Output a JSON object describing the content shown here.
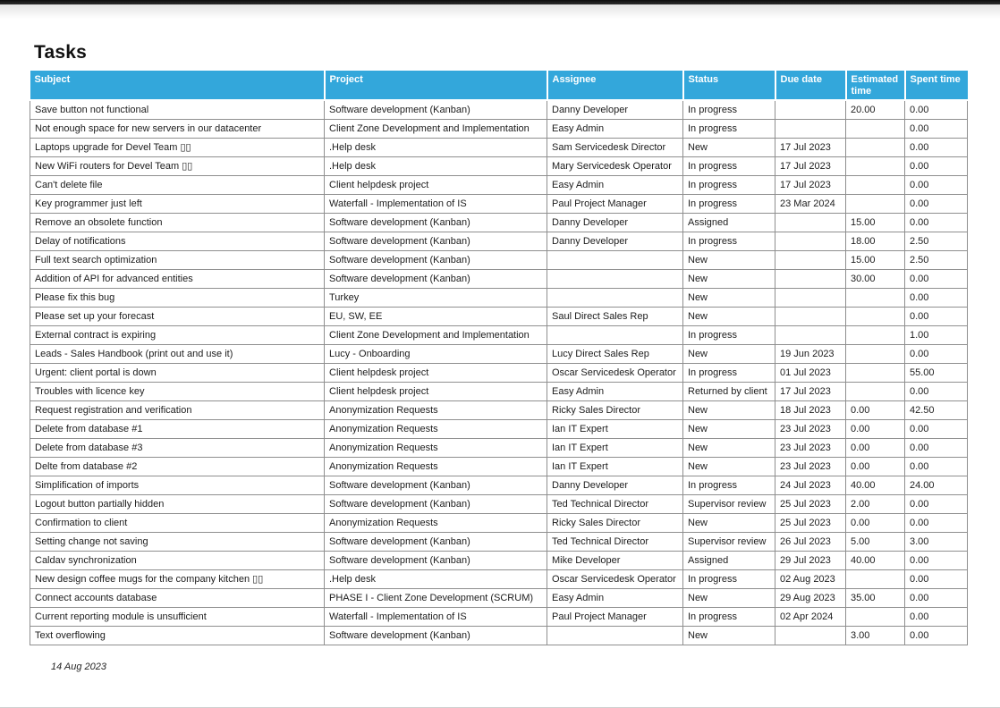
{
  "page": {
    "title": "Tasks",
    "footer_date": "14 Aug 2023"
  },
  "table": {
    "header_bg": "#33A7DB",
    "columns": [
      "Subject",
      "Project",
      "Assignee",
      "Status",
      "Due date",
      "Estimated time",
      "Spent time"
    ],
    "rows": [
      [
        "Save button not functional",
        "Software development (Kanban)",
        "Danny Developer",
        "In progress",
        "",
        "20.00",
        "0.00"
      ],
      [
        "Not enough space for new servers in our datacenter",
        "Client Zone Development and Implementation",
        "Easy Admin",
        "In progress",
        "",
        "",
        "0.00"
      ],
      [
        "Laptops upgrade for Devel Team ▯▯",
        ".Help desk",
        "Sam Servicedesk Director",
        "New",
        "17 Jul 2023",
        "",
        "0.00"
      ],
      [
        "New WiFi routers for Devel Team ▯▯",
        ".Help desk",
        "Mary Servicedesk Operator",
        "In progress",
        "17 Jul 2023",
        "",
        "0.00"
      ],
      [
        "Can't delete file",
        "Client helpdesk project",
        "Easy Admin",
        "In progress",
        "17 Jul 2023",
        "",
        "0.00"
      ],
      [
        "Key programmer just left",
        "Waterfall - Implementation of IS",
        "Paul Project Manager",
        "In progress",
        "23 Mar 2024",
        "",
        "0.00"
      ],
      [
        "Remove an obsolete function",
        "Software development (Kanban)",
        "Danny Developer",
        "Assigned",
        "",
        "15.00",
        "0.00"
      ],
      [
        "Delay of notifications",
        "Software development (Kanban)",
        "Danny Developer",
        "In progress",
        "",
        "18.00",
        "2.50"
      ],
      [
        "Full text search optimization",
        "Software development (Kanban)",
        "",
        "New",
        "",
        "15.00",
        "2.50"
      ],
      [
        "Addition of API for advanced entities",
        "Software development (Kanban)",
        "",
        "New",
        "",
        "30.00",
        "0.00"
      ],
      [
        "Please fix this bug",
        "Turkey",
        "",
        "New",
        "",
        "",
        "0.00"
      ],
      [
        "Please set up your forecast",
        "EU, SW, EE",
        "Saul Direct Sales Rep",
        "New",
        "",
        "",
        "0.00"
      ],
      [
        "External contract is expiring",
        "Client Zone Development and Implementation",
        "",
        "In progress",
        "",
        "",
        "1.00"
      ],
      [
        "Leads - Sales Handbook (print out and use it)",
        "Lucy - Onboarding",
        "Lucy Direct Sales Rep",
        "New",
        "19 Jun 2023",
        "",
        "0.00"
      ],
      [
        "Urgent: client portal is down",
        "Client helpdesk project",
        "Oscar Servicedesk Operator",
        "In progress",
        "01 Jul 2023",
        "",
        "55.00"
      ],
      [
        "Troubles with licence key",
        "Client helpdesk project",
        "Easy Admin",
        "Returned by client",
        "17 Jul 2023",
        "",
        "0.00"
      ],
      [
        "Request registration and verification",
        "Anonymization Requests",
        "Ricky Sales Director",
        "New",
        "18 Jul 2023",
        "0.00",
        "42.50"
      ],
      [
        "Delete from database #1",
        "Anonymization Requests",
        "Ian IT Expert",
        "New",
        "23 Jul 2023",
        "0.00",
        "0.00"
      ],
      [
        "Delete from database #3",
        "Anonymization Requests",
        "Ian IT Expert",
        "New",
        "23 Jul 2023",
        "0.00",
        "0.00"
      ],
      [
        "Delte from database #2",
        "Anonymization Requests",
        "Ian IT Expert",
        "New",
        "23 Jul 2023",
        "0.00",
        "0.00"
      ],
      [
        "Simplification of imports",
        "Software development (Kanban)",
        "Danny Developer",
        "In progress",
        "24 Jul 2023",
        "40.00",
        "24.00"
      ],
      [
        "Logout button partially hidden",
        "Software development (Kanban)",
        "Ted Technical Director",
        "Supervisor review",
        "25 Jul 2023",
        "2.00",
        "0.00"
      ],
      [
        "Confirmation to client",
        "Anonymization Requests",
        "Ricky Sales Director",
        "New",
        "25 Jul 2023",
        "0.00",
        "0.00"
      ],
      [
        "Setting change not saving",
        "Software development (Kanban)",
        "Ted Technical Director",
        "Supervisor review",
        "26 Jul 2023",
        "5.00",
        "3.00"
      ],
      [
        "Caldav synchronization",
        "Software development (Kanban)",
        "Mike Developer",
        "Assigned",
        "29 Jul 2023",
        "40.00",
        "0.00"
      ],
      [
        "New design coffee mugs for the company kitchen ▯▯",
        ".Help desk",
        "Oscar Servicedesk Operator",
        "In progress",
        "02 Aug 2023",
        "",
        "0.00"
      ],
      [
        "Connect accounts database",
        "PHASE I - Client Zone Development (SCRUM)",
        "Easy Admin",
        "New",
        "29 Aug 2023",
        "35.00",
        "0.00"
      ],
      [
        "Current reporting module is unsufficient",
        "Waterfall - Implementation of IS",
        "Paul Project Manager",
        "In progress",
        "02 Apr 2024",
        "",
        "0.00"
      ],
      [
        "Text overflowing",
        "Software development (Kanban)",
        "",
        "New",
        "",
        "3.00",
        "0.00"
      ]
    ]
  }
}
